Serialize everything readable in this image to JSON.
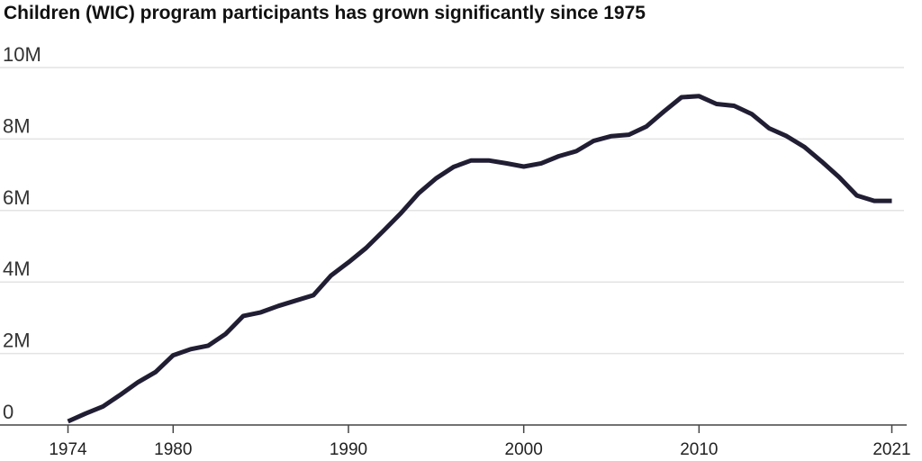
{
  "chart_data": {
    "type": "line",
    "title": "Children (WIC) program participants has grown significantly since 1975",
    "xlabel": "",
    "ylabel": "",
    "xlim": [
      1974,
      2021
    ],
    "ylim": [
      0,
      10000000
    ],
    "x_ticks": [
      1974,
      1980,
      1990,
      2000,
      2010,
      2021
    ],
    "x_tick_labels": [
      "1974",
      "1980",
      "1990",
      "2000",
      "2010",
      "2021"
    ],
    "y_ticks": [
      0,
      2000000,
      4000000,
      6000000,
      8000000,
      10000000
    ],
    "y_tick_labels": [
      "0",
      "2M",
      "4M",
      "6M",
      "8M",
      "10M"
    ],
    "grid": "horizontal",
    "series": [
      {
        "color": "#211d33",
        "points": [
          [
            1974,
            100000
          ],
          [
            1975,
            320000
          ],
          [
            1976,
            520000
          ],
          [
            1977,
            850000
          ],
          [
            1978,
            1200000
          ],
          [
            1979,
            1480000
          ],
          [
            1980,
            1950000
          ],
          [
            1981,
            2120000
          ],
          [
            1982,
            2220000
          ],
          [
            1983,
            2550000
          ],
          [
            1984,
            3050000
          ],
          [
            1985,
            3150000
          ],
          [
            1986,
            3330000
          ],
          [
            1987,
            3480000
          ],
          [
            1988,
            3630000
          ],
          [
            1989,
            4180000
          ],
          [
            1990,
            4550000
          ],
          [
            1991,
            4950000
          ],
          [
            1992,
            5430000
          ],
          [
            1993,
            5930000
          ],
          [
            1994,
            6480000
          ],
          [
            1995,
            6900000
          ],
          [
            1996,
            7220000
          ],
          [
            1997,
            7400000
          ],
          [
            1998,
            7400000
          ],
          [
            1999,
            7320000
          ],
          [
            2000,
            7230000
          ],
          [
            2001,
            7320000
          ],
          [
            2002,
            7520000
          ],
          [
            2003,
            7660000
          ],
          [
            2004,
            7950000
          ],
          [
            2005,
            8080000
          ],
          [
            2006,
            8120000
          ],
          [
            2007,
            8350000
          ],
          [
            2008,
            8770000
          ],
          [
            2009,
            9170000
          ],
          [
            2010,
            9200000
          ],
          [
            2011,
            8980000
          ],
          [
            2012,
            8930000
          ],
          [
            2013,
            8700000
          ],
          [
            2014,
            8300000
          ],
          [
            2015,
            8080000
          ],
          [
            2016,
            7780000
          ],
          [
            2017,
            7370000
          ],
          [
            2018,
            6930000
          ],
          [
            2019,
            6420000
          ],
          [
            2020,
            6270000
          ],
          [
            2021,
            6270000
          ]
        ]
      }
    ]
  }
}
